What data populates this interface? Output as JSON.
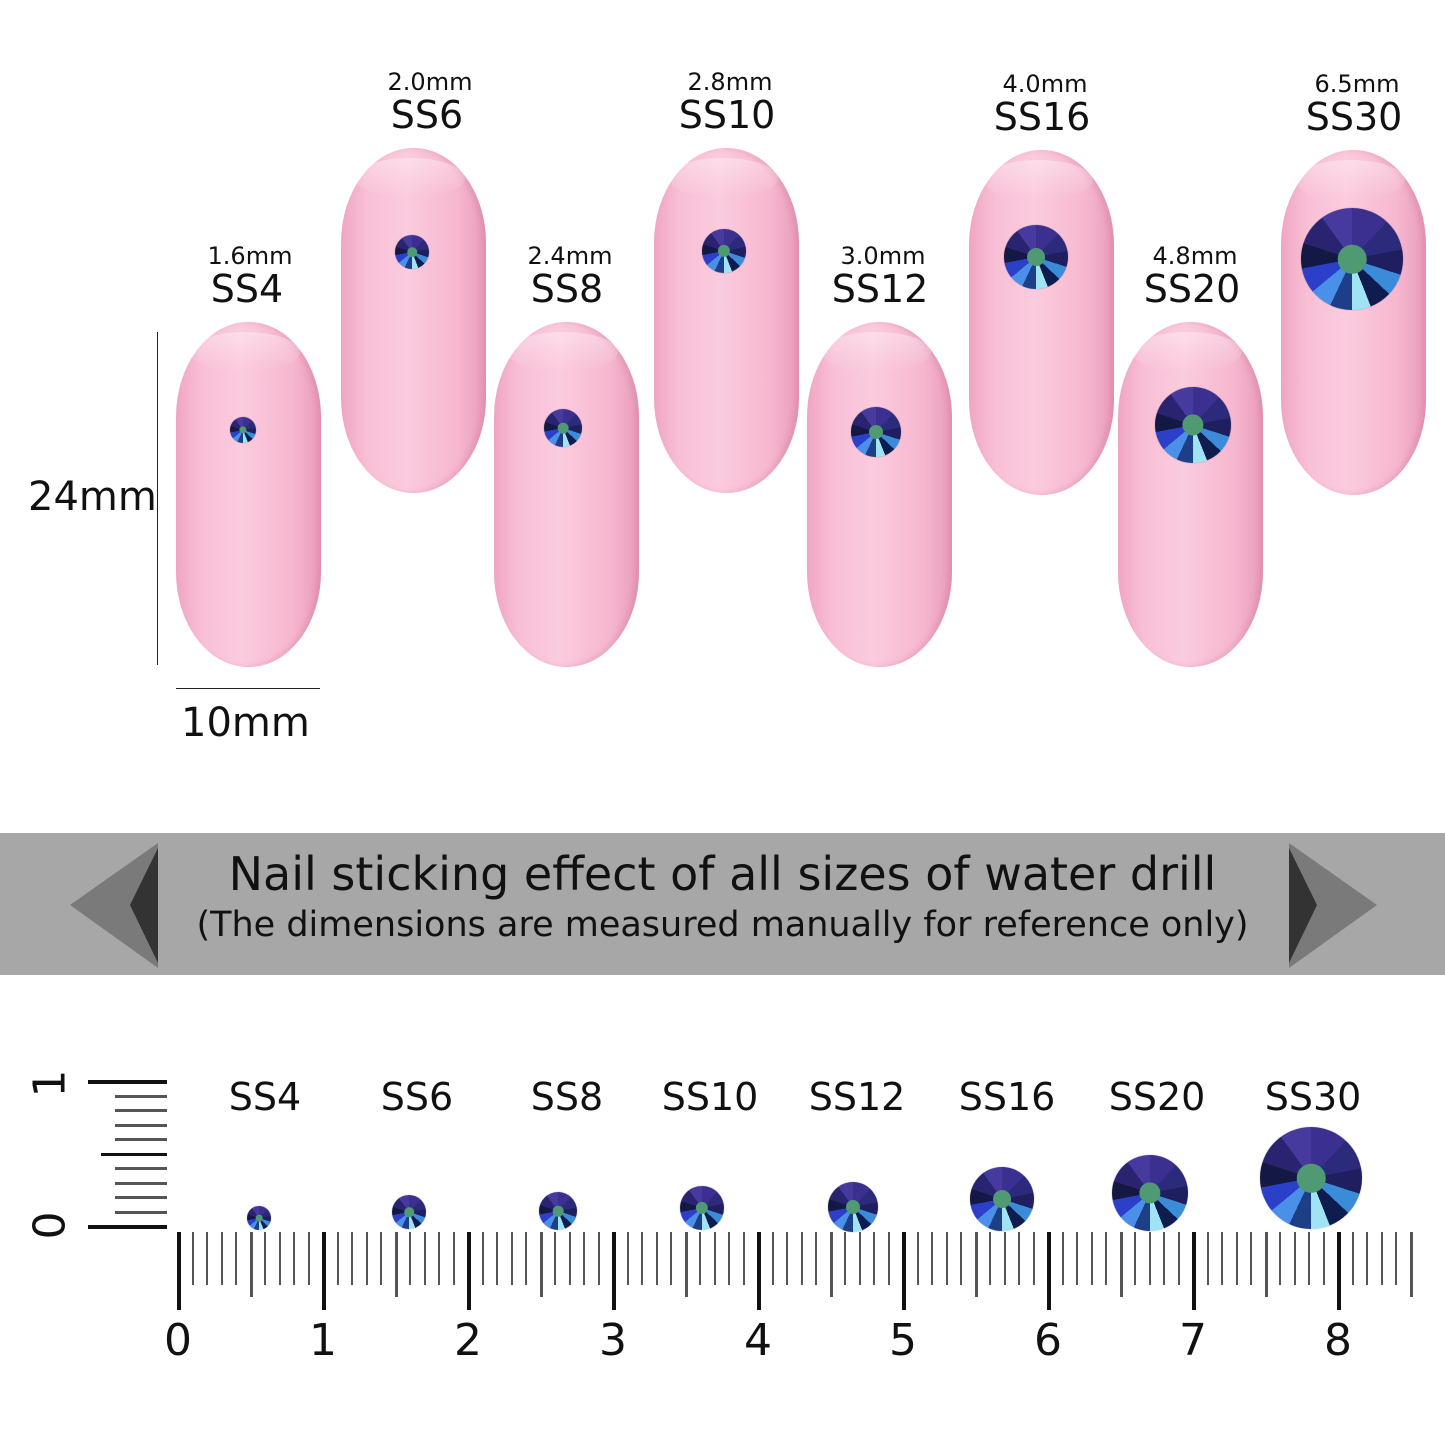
{
  "nails": [
    {
      "size": "SS4",
      "mm": "1.6mm"
    },
    {
      "size": "SS6",
      "mm": "2.0mm"
    },
    {
      "size": "SS8",
      "mm": "2.4mm"
    },
    {
      "size": "SS10",
      "mm": "2.8mm"
    },
    {
      "size": "SS12",
      "mm": "3.0mm"
    },
    {
      "size": "SS16",
      "mm": "4.0mm"
    },
    {
      "size": "SS20",
      "mm": "4.8mm"
    },
    {
      "size": "SS30",
      "mm": "6.5mm"
    }
  ],
  "dimensions": {
    "height": "24mm",
    "width": "10mm"
  },
  "banner": {
    "title": "Nail sticking effect of all sizes of water drill",
    "subtitle": "(The dimensions are measured manually for reference only)"
  },
  "ruler": {
    "labels": [
      "0",
      "1",
      "2",
      "3",
      "4",
      "5",
      "6",
      "7",
      "8"
    ],
    "vertical_labels": [
      "1",
      "0"
    ]
  },
  "gem_labels": [
    "SS4",
    "SS6",
    "SS8",
    "SS10",
    "SS12",
    "SS16",
    "SS20",
    "SS30"
  ],
  "colors": {
    "nail": "#f8bfd6",
    "banner": "#a7a7a7",
    "gem_core": "#4f9a72"
  }
}
